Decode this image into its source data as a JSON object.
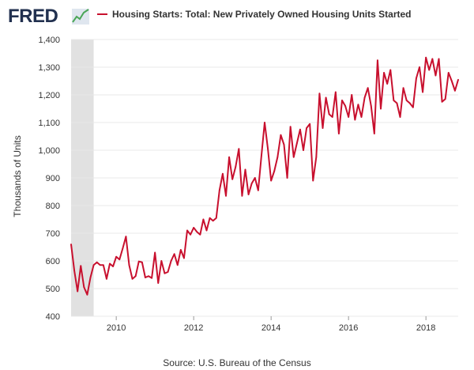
{
  "header": {
    "logo_text": "FRED",
    "legend_label": "Housing Starts: Total: New Privately Owned Housing Units Started"
  },
  "footer": {
    "source": "Source: U.S. Bureau of the Census"
  },
  "colors": {
    "series": "#c8102e",
    "recession": "#e1e1e1",
    "grid": "#e8e8e8",
    "logo": "#21304f"
  },
  "chart_data": {
    "type": "line",
    "title": "Housing Starts: Total: New Privately Owned Housing Units Started",
    "xlabel": "",
    "ylabel": "Thousands of Units",
    "xlim": [
      "2008-11-01",
      "2018-11-01"
    ],
    "ylim": [
      400,
      1400
    ],
    "y_ticks": [
      400,
      500,
      600,
      700,
      800,
      900,
      1000,
      1100,
      1200,
      1300,
      1400
    ],
    "x_ticks": [
      "2010",
      "2012",
      "2014",
      "2016",
      "2018"
    ],
    "grid": true,
    "legend_position": "top",
    "shaded_regions": [
      {
        "start": "2008-11-01",
        "end": "2009-06-01",
        "label": "recession"
      }
    ],
    "series": [
      {
        "start": "2008-11-01",
        "frequency": "monthly",
        "values": [
          660,
          565,
          490,
          582,
          505,
          478,
          540,
          585,
          595,
          585,
          585,
          535,
          590,
          580,
          615,
          605,
          645,
          688,
          585,
          535,
          545,
          598,
          595,
          540,
          545,
          538,
          630,
          520,
          600,
          555,
          560,
          600,
          625,
          585,
          640,
          610,
          710,
          695,
          720,
          705,
          695,
          750,
          710,
          755,
          745,
          755,
          855,
          915,
          835,
          975,
          895,
          940,
          1005,
          835,
          930,
          840,
          880,
          900,
          855,
          980,
          1100,
          1005,
          890,
          925,
          975,
          1055,
          1020,
          900,
          1085,
          975,
          1025,
          1075,
          1000,
          1080,
          1095,
          890,
          975,
          1205,
          1080,
          1190,
          1130,
          1120,
          1210,
          1060,
          1180,
          1160,
          1120,
          1200,
          1110,
          1165,
          1120,
          1190,
          1225,
          1160,
          1060,
          1325,
          1150,
          1280,
          1240,
          1290,
          1180,
          1170,
          1120,
          1225,
          1180,
          1170,
          1155,
          1260,
          1300,
          1210,
          1335,
          1290,
          1330,
          1270,
          1330,
          1175,
          1185,
          1280,
          1250,
          1215,
          1255
        ]
      }
    ]
  }
}
